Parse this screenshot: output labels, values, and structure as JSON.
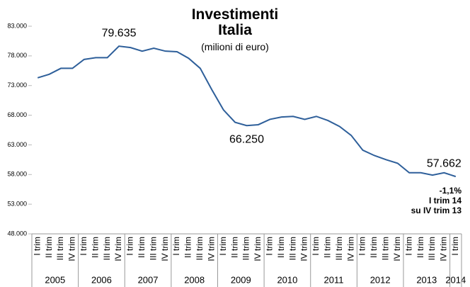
{
  "chart_data": {
    "type": "line",
    "title": "Investimenti Italia",
    "subtitle": "(milioni di euro)",
    "categories": [
      "I trim",
      "II trim",
      "III trim",
      "IV trim",
      "I trim",
      "II trim",
      "III trim",
      "IV trim",
      "I trim",
      "II trim",
      "III trim",
      "IV trim",
      "I trim",
      "II trim",
      "III trim",
      "IV trim",
      "I trim",
      "II trim",
      "III trim",
      "IV trim",
      "I trim",
      "II trim",
      "III trim",
      "IV trim",
      "I trim",
      "II trim",
      "III trim",
      "IV trim",
      "I trim",
      "II trim",
      "III trim",
      "IV trim",
      "I trim",
      "II trim",
      "III trim",
      "IV trim",
      "I trim"
    ],
    "years": [
      "2005",
      "2006",
      "2007",
      "2008",
      "2009",
      "2010",
      "2011",
      "2012",
      "2013",
      "2014"
    ],
    "values": [
      74300,
      74900,
      75900,
      75900,
      77400,
      77700,
      77700,
      79635,
      79400,
      78800,
      79300,
      78800,
      78700,
      77600,
      75900,
      72300,
      68900,
      66800,
      66250,
      66400,
      67300,
      67700,
      67800,
      67300,
      67800,
      67100,
      66100,
      64600,
      62100,
      61200,
      60500,
      59900,
      58300,
      58300,
      57900,
      58300,
      57662
    ],
    "value_labels": [
      null,
      null,
      null,
      null,
      null,
      null,
      null,
      "79.635",
      null,
      null,
      null,
      null,
      null,
      null,
      null,
      null,
      null,
      null,
      "66.250",
      null,
      null,
      null,
      null,
      null,
      null,
      null,
      null,
      null,
      null,
      null,
      null,
      null,
      null,
      null,
      null,
      null,
      "57.662"
    ],
    "color": "#2e5f9a",
    "ylim": [
      48000,
      83000
    ],
    "yticks": [
      {
        "value": 48000,
        "label": "48.000"
      },
      {
        "value": 53000,
        "label": "53.000"
      },
      {
        "value": 58000,
        "label": "58.000"
      },
      {
        "value": 63000,
        "label": "63.000"
      },
      {
        "value": 68000,
        "label": "68.000"
      },
      {
        "value": 73000,
        "label": "73.000"
      },
      {
        "value": 78000,
        "label": "78.000"
      },
      {
        "value": 83000,
        "label": "83.000"
      }
    ],
    "annotations": [
      "-1,1%",
      "I trim 14",
      "su IV trim 13"
    ],
    "grid": false
  }
}
